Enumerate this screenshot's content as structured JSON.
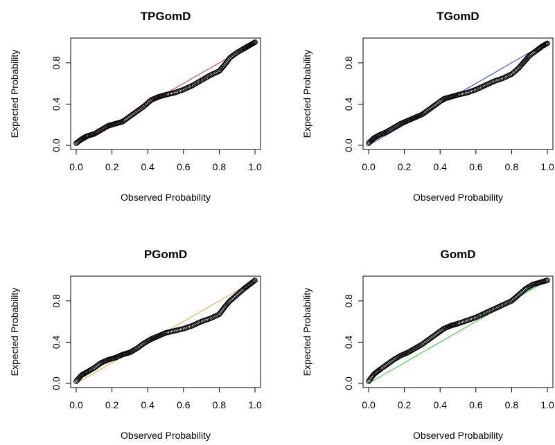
{
  "chart_data": [
    {
      "type": "scatter",
      "title": "TPGomD",
      "xlabel": "Observed Probability",
      "ylabel": "Expected Probability",
      "xlim": [
        0,
        1
      ],
      "ylim": [
        0,
        1
      ],
      "x_ticks": [
        "0.0",
        "0.2",
        "0.4",
        "0.6",
        "0.8",
        "1.0"
      ],
      "y_ticks": [
        "0.0",
        "0.4",
        "0.8"
      ],
      "grid": false,
      "reference_line": {
        "from": [
          0,
          0
        ],
        "to": [
          1,
          1
        ],
        "color": "#d62728"
      },
      "series": [
        {
          "points": [
            [
              0.0,
              0.02
            ],
            [
              0.03,
              0.06
            ],
            [
              0.06,
              0.09
            ],
            [
              0.1,
              0.11
            ],
            [
              0.14,
              0.15
            ],
            [
              0.18,
              0.19
            ],
            [
              0.22,
              0.21
            ],
            [
              0.26,
              0.23
            ],
            [
              0.3,
              0.28
            ],
            [
              0.34,
              0.33
            ],
            [
              0.38,
              0.38
            ],
            [
              0.42,
              0.44
            ],
            [
              0.46,
              0.47
            ],
            [
              0.5,
              0.49
            ],
            [
              0.55,
              0.51
            ],
            [
              0.6,
              0.54
            ],
            [
              0.65,
              0.58
            ],
            [
              0.7,
              0.63
            ],
            [
              0.75,
              0.68
            ],
            [
              0.8,
              0.72
            ],
            [
              0.83,
              0.78
            ],
            [
              0.86,
              0.85
            ],
            [
              0.9,
              0.9
            ],
            [
              0.94,
              0.94
            ],
            [
              0.97,
              0.97
            ],
            [
              1.0,
              1.0
            ]
          ]
        }
      ]
    },
    {
      "type": "scatter",
      "title": "TGomD",
      "xlabel": "Observed Probability",
      "ylabel": "Expected Probability",
      "xlim": [
        0,
        1
      ],
      "ylim": [
        0,
        1
      ],
      "x_ticks": [
        "0.0",
        "0.2",
        "0.4",
        "0.6",
        "0.8",
        "1.0"
      ],
      "y_ticks": [
        "0.0",
        "0.4",
        "0.8"
      ],
      "grid": false,
      "reference_line": {
        "from": [
          0,
          0
        ],
        "to": [
          1,
          1
        ],
        "color": "#1f3fbf"
      },
      "series": [
        {
          "points": [
            [
              0.0,
              0.02
            ],
            [
              0.03,
              0.07
            ],
            [
              0.06,
              0.1
            ],
            [
              0.1,
              0.13
            ],
            [
              0.14,
              0.17
            ],
            [
              0.18,
              0.21
            ],
            [
              0.22,
              0.24
            ],
            [
              0.26,
              0.27
            ],
            [
              0.3,
              0.3
            ],
            [
              0.34,
              0.35
            ],
            [
              0.38,
              0.4
            ],
            [
              0.42,
              0.45
            ],
            [
              0.46,
              0.47
            ],
            [
              0.5,
              0.49
            ],
            [
              0.55,
              0.51
            ],
            [
              0.6,
              0.54
            ],
            [
              0.65,
              0.58
            ],
            [
              0.7,
              0.62
            ],
            [
              0.75,
              0.65
            ],
            [
              0.8,
              0.69
            ],
            [
              0.84,
              0.75
            ],
            [
              0.87,
              0.81
            ],
            [
              0.9,
              0.87
            ],
            [
              0.94,
              0.92
            ],
            [
              0.97,
              0.96
            ],
            [
              1.0,
              0.99
            ]
          ]
        }
      ]
    },
    {
      "type": "scatter",
      "title": "PGomD",
      "xlabel": "Observed Probability",
      "ylabel": "Expected Probability",
      "xlim": [
        0,
        1
      ],
      "ylim": [
        0,
        1
      ],
      "x_ticks": [
        "0.0",
        "0.2",
        "0.4",
        "0.6",
        "0.8",
        "1.0"
      ],
      "y_ticks": [
        "0.0",
        "0.4",
        "0.8"
      ],
      "grid": false,
      "reference_line": {
        "from": [
          0,
          0
        ],
        "to": [
          1,
          1
        ],
        "color": "#f0a030"
      },
      "series": [
        {
          "points": [
            [
              0.0,
              0.02
            ],
            [
              0.03,
              0.08
            ],
            [
              0.06,
              0.11
            ],
            [
              0.1,
              0.15
            ],
            [
              0.14,
              0.2
            ],
            [
              0.18,
              0.23
            ],
            [
              0.22,
              0.25
            ],
            [
              0.26,
              0.28
            ],
            [
              0.3,
              0.3
            ],
            [
              0.34,
              0.34
            ],
            [
              0.38,
              0.39
            ],
            [
              0.42,
              0.43
            ],
            [
              0.46,
              0.46
            ],
            [
              0.5,
              0.49
            ],
            [
              0.55,
              0.51
            ],
            [
              0.6,
              0.53
            ],
            [
              0.65,
              0.56
            ],
            [
              0.7,
              0.6
            ],
            [
              0.75,
              0.63
            ],
            [
              0.8,
              0.67
            ],
            [
              0.83,
              0.74
            ],
            [
              0.86,
              0.8
            ],
            [
              0.9,
              0.86
            ],
            [
              0.94,
              0.92
            ],
            [
              0.97,
              0.96
            ],
            [
              1.0,
              1.0
            ]
          ]
        }
      ]
    },
    {
      "type": "scatter",
      "title": "GomD",
      "xlabel": "Observed Probability",
      "ylabel": "Expected Probability",
      "xlim": [
        0,
        1
      ],
      "ylim": [
        0,
        1
      ],
      "x_ticks": [
        "0.0",
        "0.2",
        "0.4",
        "0.6",
        "0.8",
        "1.0"
      ],
      "y_ticks": [
        "0.0",
        "0.4",
        "0.8"
      ],
      "grid": false,
      "reference_line": {
        "from": [
          0,
          0
        ],
        "to": [
          1,
          1
        ],
        "color": "#22cc22"
      },
      "series": [
        {
          "points": [
            [
              0.0,
              0.02
            ],
            [
              0.03,
              0.09
            ],
            [
              0.06,
              0.13
            ],
            [
              0.1,
              0.18
            ],
            [
              0.14,
              0.23
            ],
            [
              0.18,
              0.27
            ],
            [
              0.22,
              0.3
            ],
            [
              0.26,
              0.34
            ],
            [
              0.3,
              0.38
            ],
            [
              0.34,
              0.43
            ],
            [
              0.38,
              0.48
            ],
            [
              0.42,
              0.53
            ],
            [
              0.46,
              0.56
            ],
            [
              0.5,
              0.58
            ],
            [
              0.55,
              0.61
            ],
            [
              0.6,
              0.64
            ],
            [
              0.65,
              0.68
            ],
            [
              0.7,
              0.72
            ],
            [
              0.75,
              0.76
            ],
            [
              0.8,
              0.8
            ],
            [
              0.84,
              0.86
            ],
            [
              0.88,
              0.92
            ],
            [
              0.92,
              0.96
            ],
            [
              0.96,
              0.98
            ],
            [
              1.0,
              1.0
            ]
          ]
        }
      ]
    }
  ]
}
